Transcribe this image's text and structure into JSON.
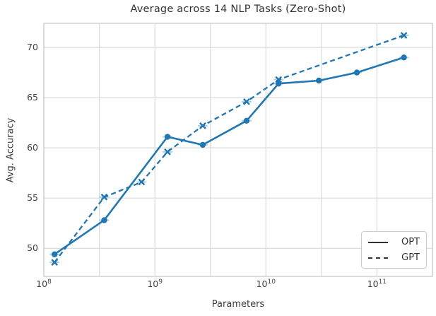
{
  "chart_data": {
    "type": "line",
    "title": "Average across 14 NLP Tasks (Zero-Shot)",
    "xlabel": "Parameters",
    "ylabel": "Avg. Accuracy",
    "x_scale": "log",
    "x_unit": "parameters (billions)",
    "xlim_log10": [
      8.0,
      11.5
    ],
    "ylim": [
      47.2,
      72.4
    ],
    "x_tick_exponents": [
      8,
      9,
      10,
      11
    ],
    "x_gridline_exponents": [
      8,
      8.5,
      9,
      9.5,
      10,
      10.5,
      11,
      11.5
    ],
    "y_ticks": [
      50,
      55,
      60,
      65,
      70
    ],
    "grid": true,
    "legend_position": "lower right",
    "line_color": "#1f77b4",
    "errorbar_color": "rgba(31,119,180,0.35)",
    "series": [
      {
        "name": "OPT",
        "line_style": "solid",
        "marker": "circle",
        "params_billions": [
          0.125,
          0.35,
          1.3,
          2.7,
          6.7,
          13,
          30,
          66,
          175
        ],
        "values": [
          49.4,
          52.8,
          61.1,
          60.3,
          62.7,
          66.4,
          66.7,
          67.5,
          69.0
        ]
      },
      {
        "name": "GPT",
        "line_style": "dashed",
        "marker": "x",
        "params_billions": [
          0.125,
          0.35,
          0.76,
          1.3,
          2.7,
          6.7,
          13,
          175
        ],
        "values": [
          48.6,
          55.1,
          56.6,
          59.6,
          62.2,
          64.6,
          66.8,
          71.2
        ]
      }
    ]
  }
}
